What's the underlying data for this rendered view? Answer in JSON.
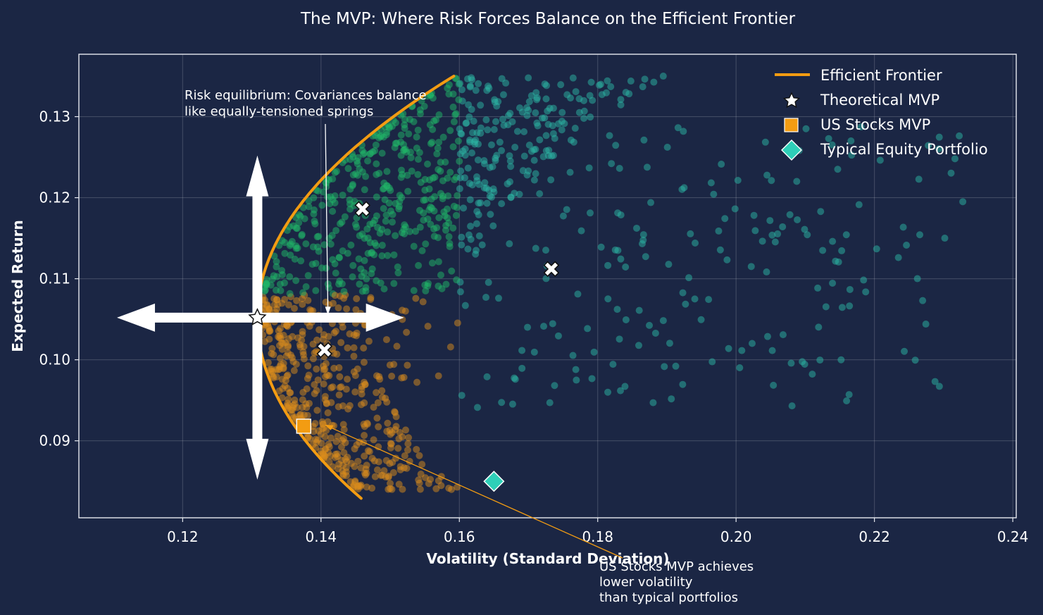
{
  "chart_data": {
    "type": "scatter",
    "title": "The MVP: Where Risk Forces Balance on the Efficient Frontier",
    "xlabel": "Volatility (Standard Deviation)",
    "ylabel": "Expected Return",
    "xlim": [
      0.105,
      0.2405
    ],
    "ylim": [
      0.0805,
      0.1377
    ],
    "xticks": [
      0.12,
      0.14,
      0.16,
      0.18,
      0.2,
      0.22,
      0.24
    ],
    "xtick_labels": [
      "0.12",
      "0.14",
      "0.16",
      "0.18",
      "0.20",
      "0.22",
      "0.24"
    ],
    "yticks": [
      0.09,
      0.1,
      0.11,
      0.12,
      0.13
    ],
    "ytick_labels": [
      "0.09",
      "0.10",
      "0.11",
      "0.12",
      "0.13"
    ],
    "grid": true,
    "legend_position": "top-right",
    "colors": {
      "background": "#1b2644",
      "frontier": "#f39c12",
      "low_risk_points": "#d98b1c",
      "high_return_points": "#1fb868",
      "high_vol_points": "#2bb5a4",
      "typical_portfolio": "#2ecfb8",
      "us_stocks": "#f39c12",
      "arrows": "#ffffff"
    },
    "legend": [
      {
        "label": "Efficient Frontier",
        "marker": "line"
      },
      {
        "label": "Theoretical MVP",
        "marker": "star"
      },
      {
        "label": "US Stocks MVP",
        "marker": "square"
      },
      {
        "label": "Typical Equity Portfolio",
        "marker": "diamond"
      }
    ],
    "frontier": {
      "name": "Efficient Frontier",
      "mvp": [
        0.1308,
        0.1052
      ],
      "x_max": 0.1592,
      "y_min": 0.0829,
      "y_max": 0.135
    },
    "special_points": {
      "theoretical_mvp": [
        0.1308,
        0.1052
      ],
      "us_stocks_mvp": [
        0.1375,
        0.0918
      ],
      "typical_equity_portfolio": [
        0.165,
        0.085
      ],
      "x_markers": [
        [
          0.146,
          0.1186
        ],
        [
          0.1405,
          0.1012
        ],
        [
          0.1733,
          0.1112
        ]
      ]
    },
    "scatter_cloud": {
      "count": 1250,
      "color_rule": "orange below return 0.108 near frontier, green for high-return low-volatility, teal for high-volatility",
      "return_range": [
        0.083,
        0.135
      ],
      "volatility_range": [
        0.131,
        0.234
      ]
    },
    "annotations": [
      {
        "text_lines": [
          "Risk equilibrium: Covariances balance",
          "like equally-tensioned springs"
        ],
        "target": [
          0.141,
          0.1055
        ]
      },
      {
        "text_lines": [
          "US Stocks MVP achieves",
          "lower volatility",
          "than typical portfolios"
        ],
        "target": [
          0.1405,
          0.092
        ]
      }
    ],
    "force_arrows": {
      "center": [
        0.1308,
        0.1052
      ],
      "left_to": 0.1105,
      "right_to": 0.152,
      "up_to": 0.1252,
      "down_to": 0.0852
    }
  }
}
